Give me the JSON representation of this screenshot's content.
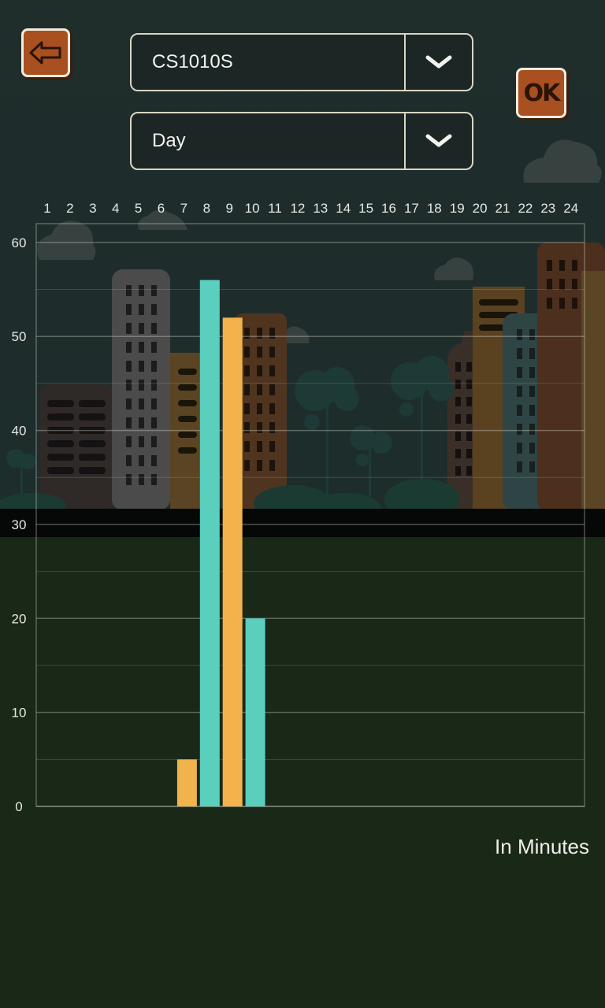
{
  "header": {
    "back_button": {
      "icon": "arrow-left-icon"
    },
    "ok_button": {
      "label": "OK"
    },
    "device_select": {
      "value": "CS1010S"
    },
    "period_select": {
      "value": "Day"
    }
  },
  "chart_data": {
    "type": "bar",
    "categories": [
      "1",
      "2",
      "3",
      "4",
      "5",
      "6",
      "7",
      "8",
      "9",
      "10",
      "11",
      "12",
      "13",
      "14",
      "15",
      "16",
      "17",
      "18",
      "19",
      "20",
      "21",
      "22",
      "23",
      "24"
    ],
    "series": [
      {
        "color": "#5bcfbe",
        "values": [
          0,
          0,
          0,
          0,
          0,
          0,
          0,
          56,
          0,
          20,
          0,
          0,
          0,
          0,
          0,
          0,
          0,
          0,
          0,
          0,
          0,
          0,
          0,
          0
        ]
      },
      {
        "color": "#f2b24c",
        "values": [
          0,
          0,
          0,
          0,
          0,
          0,
          5,
          0,
          52,
          0,
          0,
          0,
          0,
          0,
          0,
          0,
          0,
          0,
          0,
          0,
          0,
          0,
          0,
          0
        ]
      }
    ],
    "yticks": [
      "0",
      "10",
      "20",
      "30",
      "40",
      "50",
      "60"
    ],
    "ylim": [
      0,
      62
    ],
    "x_axis_position": "top",
    "grid": true
  },
  "footer": {
    "unit_label": "In Minutes"
  },
  "colors": {
    "button_bg": "#a8501f",
    "bar_teal": "#5bcfbe",
    "bar_orange": "#f2b24c",
    "ground": "#1a2818"
  }
}
